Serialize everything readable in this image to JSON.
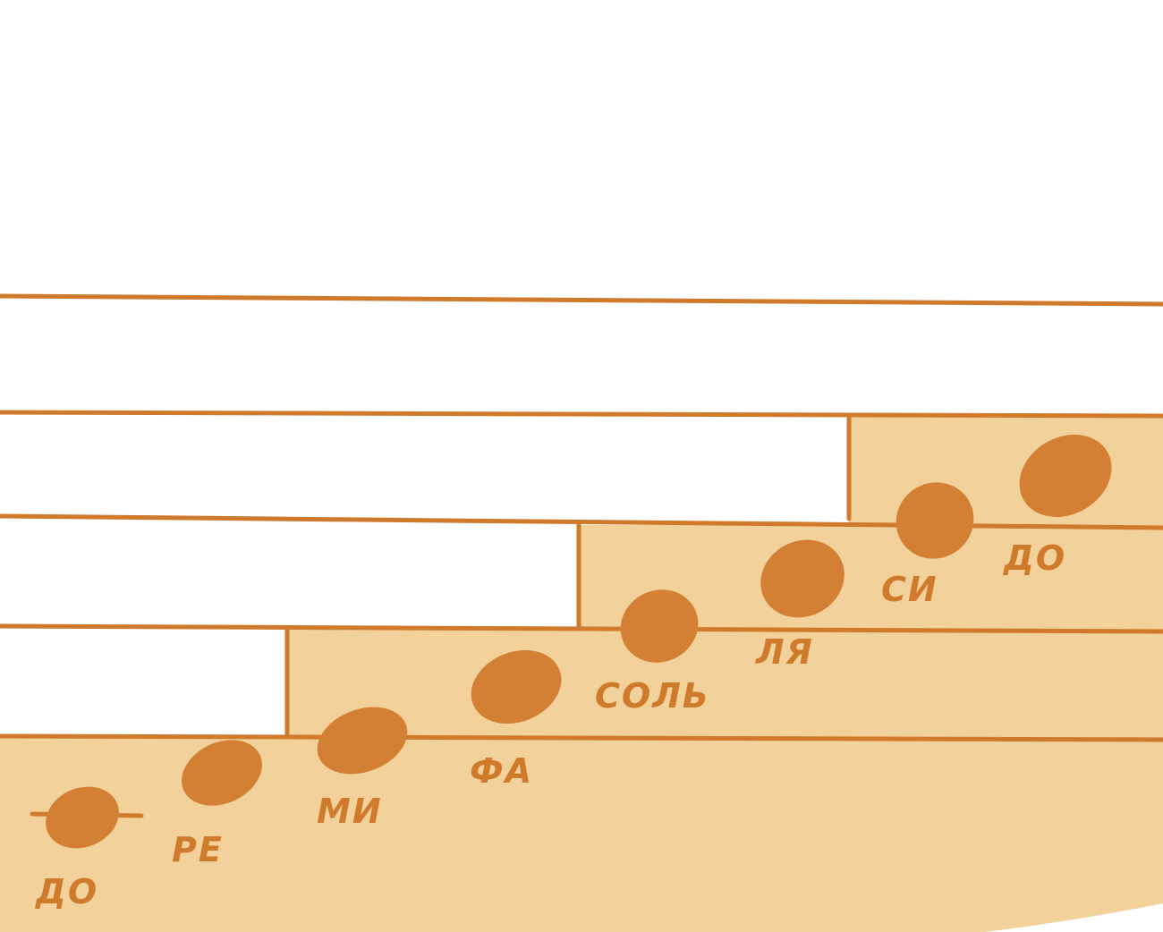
{
  "colors": {
    "background": "#ffffff",
    "staff_line": "#d07a2c",
    "step_fill": "#f2d19b",
    "note_fill": "#d38035",
    "label": "#d07a2c"
  },
  "notes": [
    {
      "label": "ДО"
    },
    {
      "label": "РЕ"
    },
    {
      "label": "МИ"
    },
    {
      "label": "ФА"
    },
    {
      "label": "СОЛЬ"
    },
    {
      "label": "ЛЯ"
    },
    {
      "label": "СИ"
    },
    {
      "label": "ДО"
    }
  ]
}
